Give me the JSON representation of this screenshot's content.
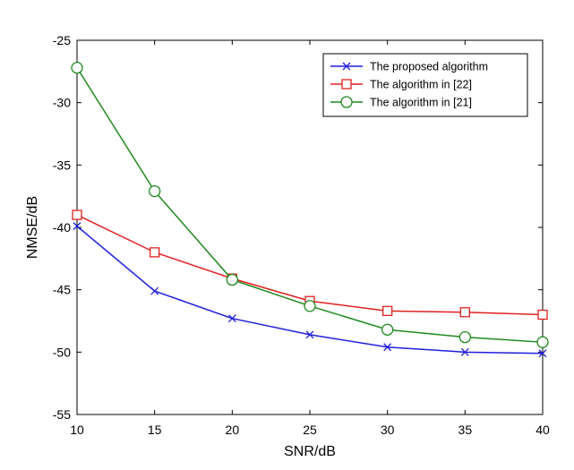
{
  "chart_data": {
    "type": "line",
    "title": "",
    "xlabel": "SNR/dB",
    "ylabel": "NMSE/dB",
    "xlim": [
      10,
      40
    ],
    "ylim": [
      -55,
      -25
    ],
    "xticks": [
      "10",
      "15",
      "20",
      "25",
      "30",
      "35",
      "40"
    ],
    "yticks": [
      "-25",
      "-30",
      "-35",
      "-40",
      "-45",
      "-50",
      "-55"
    ],
    "x": [
      10,
      15,
      20,
      25,
      30,
      35,
      40
    ],
    "grid": false,
    "legend_position": "top-right",
    "series": [
      {
        "name": "The proposed algorithm",
        "marker": "x",
        "color": "#1f1fe0",
        "values": [
          -39.9,
          -45.1,
          -47.3,
          -48.6,
          -49.6,
          -50.0,
          -50.1
        ]
      },
      {
        "name": "The algorithm in [22]",
        "marker": "square",
        "color": "#e02020",
        "values": [
          -39.0,
          -42.0,
          -44.1,
          -45.9,
          -46.7,
          -46.8,
          -47.0
        ]
      },
      {
        "name": "The algorithm in [21]",
        "marker": "circle",
        "color": "#1e8a1e",
        "values": [
          -27.2,
          -37.1,
          -44.2,
          -46.3,
          -48.2,
          -48.8,
          -49.2
        ]
      }
    ]
  }
}
